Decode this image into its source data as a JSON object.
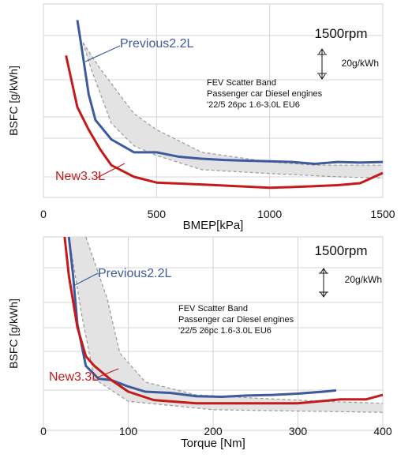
{
  "chart_data": [
    {
      "type": "line",
      "id": "bmep",
      "xlabel": "BMEP[kPa]",
      "ylabel": "BSFC [g/kWh]",
      "xlim": [
        0,
        1500
      ],
      "xticks": [
        0,
        500,
        1000,
        1500
      ],
      "grid": "horizontal",
      "corner_label": "1500rpm",
      "scale_bar_label": "20g/kWh",
      "scatter_band_text": [
        "FEV Scatter Band",
        "Passenger car Diesel engines",
        "'22/5 26pc 1.6-3.0L EU6"
      ],
      "colors": {
        "previous": "#3d5a9e",
        "new": "#c41a1a",
        "band": "#e3e3e3",
        "band_edge": "#999999"
      },
      "band": {
        "upper": [
          [
            175,
            60
          ],
          [
            250,
            100
          ],
          [
            400,
            170
          ],
          [
            500,
            195
          ],
          [
            700,
            230
          ],
          [
            1000,
            245
          ],
          [
            1200,
            250
          ],
          [
            1500,
            250
          ]
        ],
        "lower": [
          [
            175,
            60
          ],
          [
            210,
            100
          ],
          [
            300,
            185
          ],
          [
            400,
            220
          ],
          [
            500,
            235
          ],
          [
            700,
            257
          ],
          [
            1000,
            263
          ],
          [
            1300,
            268
          ],
          [
            1500,
            270
          ]
        ]
      },
      "series": [
        {
          "name": "Previous2.2L",
          "key": "previous",
          "label_anchor": [
            350,
            55
          ],
          "points": [
            [
              150,
              25
            ],
            [
              170,
              70
            ],
            [
              200,
              140
            ],
            [
              230,
              180
            ],
            [
              300,
              210
            ],
            [
              400,
              230
            ],
            [
              500,
              230
            ],
            [
              600,
              237
            ],
            [
              700,
              240
            ],
            [
              800,
              242
            ],
            [
              900,
              243
            ],
            [
              1000,
              244
            ],
            [
              1100,
              245
            ],
            [
              1200,
              248
            ],
            [
              1300,
              245
            ],
            [
              1400,
              246
            ],
            [
              1500,
              245
            ]
          ]
        },
        {
          "name": "New3.3L",
          "key": "new",
          "label_anchor": [
            230,
            293
          ],
          "points": [
            [
              100,
              80
            ],
            [
              150,
              160
            ],
            [
              200,
              195
            ],
            [
              250,
              225
            ],
            [
              300,
              250
            ],
            [
              400,
              268
            ],
            [
              500,
              277
            ],
            [
              700,
              280
            ],
            [
              1000,
              285
            ],
            [
              1100,
              284
            ],
            [
              1300,
              281
            ],
            [
              1400,
              278
            ],
            [
              1500,
              262
            ]
          ]
        }
      ]
    },
    {
      "type": "line",
      "id": "torque",
      "xlabel": "Torque [Nm]",
      "ylabel": "BSFC [g/kWh]",
      "xlim": [
        0,
        400
      ],
      "xticks": [
        0,
        100,
        200,
        300,
        400
      ],
      "grid": "horizontal",
      "corner_label": "1500rpm",
      "scale_bar_label": "20g/kWh",
      "scatter_band_text": [
        "FEV Scatter Band",
        "Passenger car Diesel engines",
        "'22/5 26pc 1.6-3.0L EU6"
      ],
      "colors": {
        "previous": "#3d5a9e",
        "new": "#c41a1a",
        "band": "#e3e3e3",
        "band_edge": "#999999"
      },
      "band": {
        "upper": [
          [
            50,
            0
          ],
          [
            75,
            95
          ],
          [
            90,
            180
          ],
          [
            120,
            225
          ],
          [
            180,
            245
          ],
          [
            250,
            250
          ],
          [
            330,
            255
          ],
          [
            400,
            258
          ]
        ],
        "lower": [
          [
            30,
            0
          ],
          [
            45,
            120
          ],
          [
            60,
            220
          ],
          [
            100,
            255
          ],
          [
            200,
            268
          ],
          [
            300,
            270
          ],
          [
            400,
            272
          ]
        ]
      },
      "series": [
        {
          "name": "Previous2.2L",
          "key": "previous",
          "label_anchor": [
            125,
            230
          ],
          "points": [
            [
              30,
              0
            ],
            [
              35,
              60
            ],
            [
              40,
              135
            ],
            [
              50,
              200
            ],
            [
              65,
              220
            ],
            [
              80,
              222
            ],
            [
              100,
              232
            ],
            [
              120,
              240
            ],
            [
              150,
              242
            ],
            [
              180,
              247
            ],
            [
              210,
              248
            ],
            [
              240,
              246
            ],
            [
              270,
              245
            ],
            [
              300,
              243
            ],
            [
              330,
              240
            ],
            [
              345,
              238
            ]
          ]
        },
        {
          "name": "New3.3L",
          "key": "new",
          "label_anchor": [
            120,
            478
          ],
          "points": [
            [
              25,
              0
            ],
            [
              30,
              60
            ],
            [
              40,
              140
            ],
            [
              50,
              185
            ],
            [
              60,
              200
            ],
            [
              80,
              222
            ],
            [
              100,
              240
            ],
            [
              130,
              253
            ],
            [
              180,
              258
            ],
            [
              240,
              258
            ],
            [
              300,
              258
            ],
            [
              350,
              252
            ],
            [
              380,
              252
            ],
            [
              400,
              245
            ]
          ]
        }
      ]
    }
  ]
}
